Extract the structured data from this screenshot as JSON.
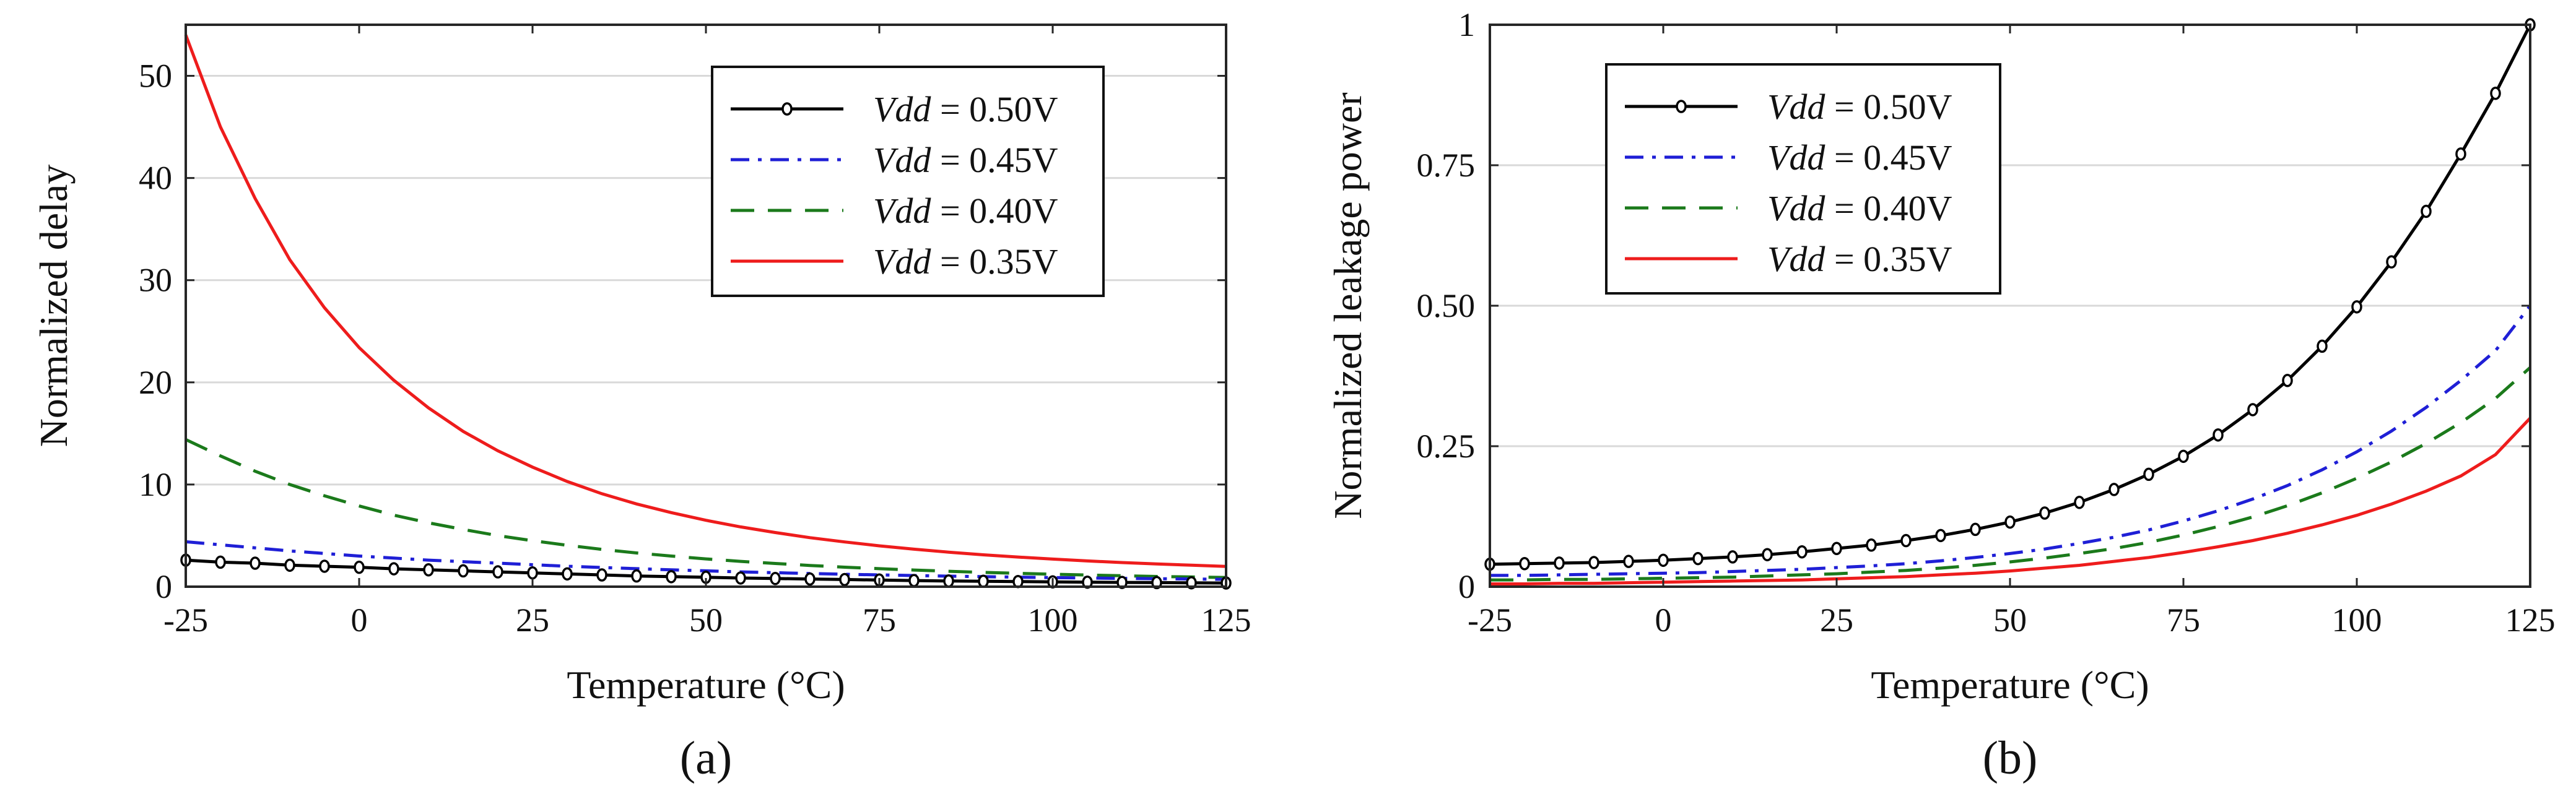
{
  "chart_data": [
    {
      "type": "line",
      "caption": "(a)",
      "xlabel": "Temperature (°C)",
      "ylabel": "Normalized delay",
      "xlim": [
        -25,
        125
      ],
      "ylim": [
        0,
        55
      ],
      "xticks": [
        -25,
        0,
        25,
        50,
        75,
        100,
        125
      ],
      "xtick_labels": [
        "-25",
        "0",
        "25",
        "50",
        "75",
        "100",
        "125"
      ],
      "yticks": [
        0,
        10,
        20,
        30,
        40,
        50
      ],
      "ytick_labels": [
        "0",
        "10",
        "20",
        "30",
        "40",
        "50"
      ],
      "grid": "horizontal",
      "legend_position": "top-right",
      "x": [
        -25,
        -20,
        -15,
        -10,
        -5,
        0,
        5,
        10,
        15,
        20,
        25,
        30,
        35,
        40,
        45,
        50,
        55,
        60,
        65,
        70,
        75,
        80,
        85,
        90,
        95,
        100,
        105,
        110,
        115,
        120,
        125
      ],
      "series": [
        {
          "name": "Vdd = 0.50V",
          "legend_italic": "Vdd",
          "legend_rest": " = 0.50V",
          "color": "#000000",
          "dash": "solid",
          "marker": "circle",
          "values": [
            2.6,
            2.4,
            2.3,
            2.1,
            2.0,
            1.9,
            1.75,
            1.65,
            1.55,
            1.45,
            1.35,
            1.25,
            1.15,
            1.05,
            0.98,
            0.92,
            0.85,
            0.8,
            0.75,
            0.7,
            0.65,
            0.6,
            0.56,
            0.53,
            0.5,
            0.47,
            0.44,
            0.42,
            0.4,
            0.38,
            0.36
          ]
        },
        {
          "name": "Vdd = 0.45V",
          "legend_italic": "Vdd",
          "legend_rest": " = 0.45V",
          "color": "#1f1fd6",
          "dash": "dashdot",
          "marker": "none",
          "values": [
            4.4,
            4.1,
            3.8,
            3.5,
            3.25,
            3.0,
            2.8,
            2.6,
            2.45,
            2.3,
            2.15,
            2.0,
            1.88,
            1.76,
            1.65,
            1.55,
            1.45,
            1.37,
            1.29,
            1.22,
            1.15,
            1.09,
            1.03,
            0.98,
            0.93,
            0.89,
            0.85,
            0.81,
            0.78,
            0.75,
            0.72
          ]
        },
        {
          "name": "Vdd = 0.40V",
          "legend_italic": "Vdd",
          "legend_rest": " = 0.40V",
          "color": "#1b7a1b",
          "dash": "dashed",
          "marker": "none",
          "values": [
            14.4,
            12.8,
            11.3,
            10.0,
            8.9,
            7.9,
            7.0,
            6.25,
            5.6,
            5.0,
            4.5,
            4.05,
            3.65,
            3.3,
            3.0,
            2.72,
            2.48,
            2.27,
            2.08,
            1.91,
            1.76,
            1.63,
            1.51,
            1.4,
            1.31,
            1.22,
            1.14,
            1.07,
            1.0,
            0.95,
            0.9
          ]
        },
        {
          "name": "Vdd = 0.35V",
          "legend_italic": "Vdd",
          "legend_rest": " = 0.35V",
          "color": "#ee1c1c",
          "dash": "solid",
          "marker": "none",
          "values": [
            54.0,
            45.0,
            38.0,
            32.0,
            27.3,
            23.4,
            20.2,
            17.5,
            15.2,
            13.3,
            11.7,
            10.3,
            9.1,
            8.1,
            7.25,
            6.5,
            5.85,
            5.3,
            4.8,
            4.38,
            4.0,
            3.67,
            3.38,
            3.12,
            2.9,
            2.7,
            2.52,
            2.36,
            2.22,
            2.1,
            1.98
          ]
        }
      ]
    },
    {
      "type": "line",
      "caption": "(b)",
      "xlabel": "Temperature (°C)",
      "ylabel": "Normalized leakage power",
      "xlim": [
        -25,
        125
      ],
      "ylim": [
        0,
        1
      ],
      "xticks": [
        -25,
        0,
        25,
        50,
        75,
        100,
        125
      ],
      "xtick_labels": [
        "-25",
        "0",
        "25",
        "50",
        "75",
        "100",
        "125"
      ],
      "yticks": [
        0,
        0.25,
        0.5,
        0.75,
        1
      ],
      "ytick_labels": [
        "0",
        "0.25",
        "0.50",
        "0.75",
        "1"
      ],
      "grid": "horizontal",
      "legend_position": "top-left",
      "x": [
        -25,
        -20,
        -15,
        -10,
        -5,
        0,
        5,
        10,
        15,
        20,
        25,
        30,
        35,
        40,
        45,
        50,
        55,
        60,
        65,
        70,
        75,
        80,
        85,
        90,
        95,
        100,
        105,
        110,
        115,
        120,
        125
      ],
      "series": [
        {
          "name": "Vdd = 0.50V",
          "legend_italic": "Vdd",
          "legend_rest": " = 0.50V",
          "color": "#000000",
          "dash": "solid",
          "marker": "circle",
          "values": [
            0.04,
            0.041,
            0.042,
            0.043,
            0.045,
            0.047,
            0.05,
            0.053,
            0.057,
            0.062,
            0.068,
            0.074,
            0.082,
            0.091,
            0.102,
            0.115,
            0.131,
            0.15,
            0.173,
            0.2,
            0.232,
            0.27,
            0.315,
            0.367,
            0.428,
            0.498,
            0.578,
            0.668,
            0.77,
            0.878,
            1.0
          ]
        },
        {
          "name": "Vdd = 0.45V",
          "legend_italic": "Vdd",
          "legend_rest": " = 0.45V",
          "color": "#1f1fd6",
          "dash": "dashdot",
          "marker": "none",
          "values": [
            0.02,
            0.02,
            0.021,
            0.022,
            0.023,
            0.024,
            0.025,
            0.027,
            0.029,
            0.031,
            0.034,
            0.037,
            0.041,
            0.046,
            0.052,
            0.059,
            0.067,
            0.077,
            0.088,
            0.101,
            0.117,
            0.135,
            0.156,
            0.18,
            0.208,
            0.24,
            0.277,
            0.319,
            0.367,
            0.42,
            0.5
          ]
        },
        {
          "name": "Vdd = 0.40V",
          "legend_italic": "Vdd",
          "legend_rest": " = 0.40V",
          "color": "#1b7a1b",
          "dash": "dashed",
          "marker": "none",
          "values": [
            0.012,
            0.012,
            0.013,
            0.013,
            0.014,
            0.015,
            0.016,
            0.017,
            0.019,
            0.021,
            0.023,
            0.026,
            0.029,
            0.033,
            0.038,
            0.044,
            0.051,
            0.059,
            0.068,
            0.079,
            0.092,
            0.107,
            0.124,
            0.144,
            0.167,
            0.193,
            0.222,
            0.255,
            0.292,
            0.335,
            0.39
          ]
        },
        {
          "name": "Vdd = 0.35V",
          "legend_italic": "Vdd",
          "legend_rest": " = 0.35V",
          "color": "#ee1c1c",
          "dash": "solid",
          "marker": "none",
          "values": [
            0.005,
            0.005,
            0.006,
            0.006,
            0.007,
            0.008,
            0.009,
            0.01,
            0.011,
            0.012,
            0.014,
            0.016,
            0.018,
            0.021,
            0.024,
            0.028,
            0.033,
            0.038,
            0.045,
            0.052,
            0.061,
            0.071,
            0.082,
            0.095,
            0.11,
            0.127,
            0.147,
            0.17,
            0.197,
            0.235,
            0.3
          ]
        }
      ]
    }
  ]
}
